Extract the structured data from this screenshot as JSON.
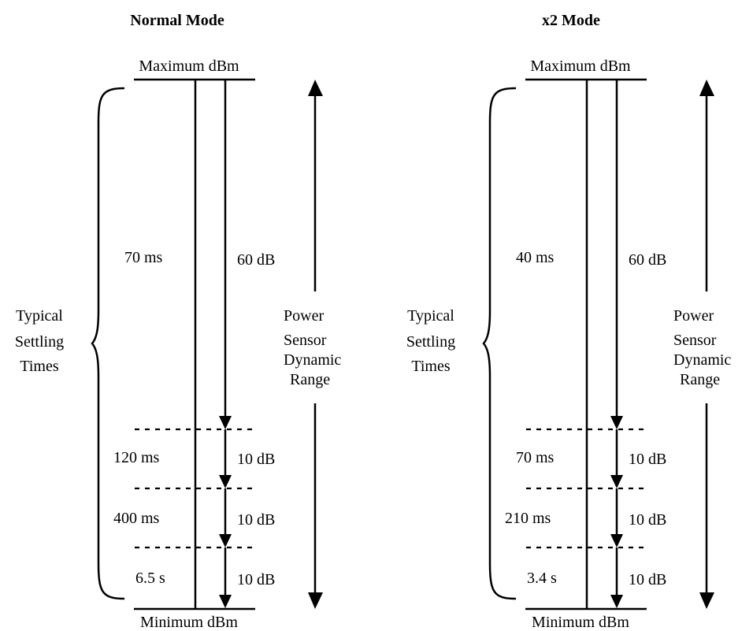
{
  "panels": [
    {
      "title": "Normal Mode",
      "max_label": "Maximum dBm",
      "min_label": "Minimum dBm",
      "side_label": [
        "Typical",
        "Settling",
        "Times"
      ],
      "range_label": [
        "Power",
        "Sensor",
        "Dynamic",
        "Range"
      ],
      "segments": [
        {
          "time": "70 ms",
          "range": "60 dB"
        },
        {
          "time": "120 ms",
          "range": "10 dB"
        },
        {
          "time": "400 ms",
          "range": "10 dB"
        },
        {
          "time": "6.5 s",
          "range": "10 dB"
        }
      ]
    },
    {
      "title": "x2 Mode",
      "max_label": "Maximum dBm",
      "min_label": "Minimum dBm",
      "side_label": [
        "Typical",
        "Settling",
        "Times"
      ],
      "range_label": [
        "Power",
        "Sensor",
        "Dynamic",
        "Range"
      ],
      "segments": [
        {
          "time": "40 ms",
          "range": "60 dB"
        },
        {
          "time": "70 ms",
          "range": "10 dB"
        },
        {
          "time": "210 ms",
          "range": "10 dB"
        },
        {
          "time": "3.4 s",
          "range": "10 dB"
        }
      ]
    }
  ]
}
